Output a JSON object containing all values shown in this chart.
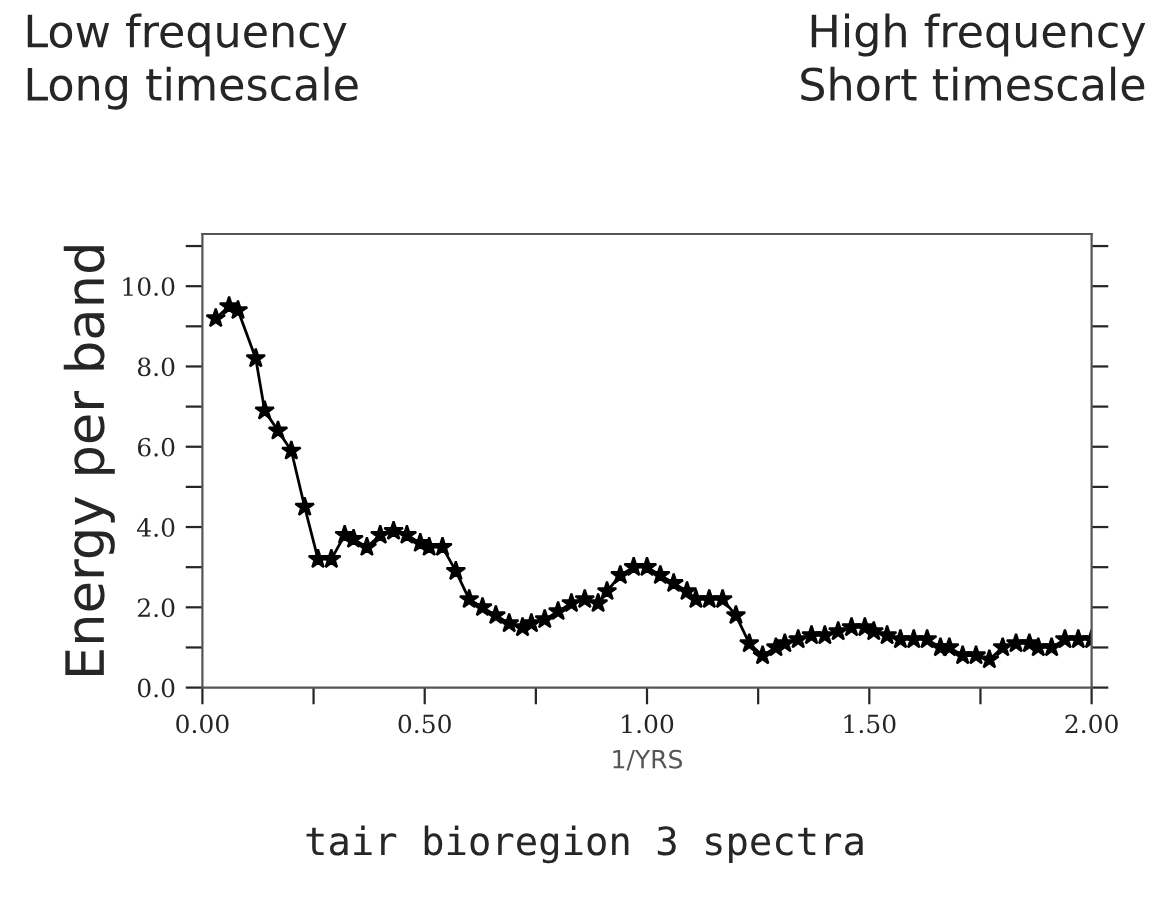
{
  "chart_data": {
    "type": "line",
    "title": "tair bioregion 3 spectra",
    "xlabel": "1/YRS",
    "ylabel": "Energy per band",
    "annotations": [
      "Low frequency\nLong timescale",
      "High frequency\nShort timescale"
    ],
    "x": [
      0.03,
      0.06,
      0.08,
      0.12,
      0.14,
      0.17,
      0.2,
      0.23,
      0.26,
      0.29,
      0.32,
      0.34,
      0.37,
      0.4,
      0.43,
      0.46,
      0.49,
      0.51,
      0.54,
      0.57,
      0.6,
      0.63,
      0.66,
      0.69,
      0.72,
      0.74,
      0.77,
      0.8,
      0.83,
      0.86,
      0.89,
      0.91,
      0.94,
      0.97,
      1.0,
      1.03,
      1.06,
      1.09,
      1.11,
      1.14,
      1.17,
      1.2,
      1.23,
      1.26,
      1.29,
      1.31,
      1.34,
      1.37,
      1.4,
      1.43,
      1.46,
      1.49,
      1.51,
      1.54,
      1.57,
      1.6,
      1.63,
      1.66,
      1.68,
      1.71,
      1.74,
      1.77,
      1.8,
      1.83,
      1.86,
      1.88,
      1.91,
      1.94,
      1.97,
      2.0
    ],
    "series": [
      {
        "color": "#000000",
        "values": [
          9.2,
          9.5,
          9.4,
          8.2,
          6.9,
          6.4,
          5.9,
          4.5,
          3.2,
          3.2,
          3.8,
          3.7,
          3.5,
          3.8,
          3.9,
          3.8,
          3.6,
          3.5,
          3.5,
          2.9,
          2.2,
          2.0,
          1.8,
          1.6,
          1.5,
          1.6,
          1.7,
          1.9,
          2.1,
          2.2,
          2.1,
          2.4,
          2.8,
          3.0,
          3.0,
          2.8,
          2.6,
          2.4,
          2.2,
          2.2,
          2.2,
          1.8,
          1.1,
          0.8,
          1.0,
          1.1,
          1.2,
          1.3,
          1.3,
          1.4,
          1.5,
          1.5,
          1.4,
          1.3,
          1.2,
          1.2,
          1.2,
          1.0,
          1.0,
          0.8,
          0.8,
          0.7,
          1.0,
          1.1,
          1.1,
          1.0,
          1.0,
          1.2,
          1.2,
          1.2
        ]
      }
    ],
    "marker": "star",
    "line_style": "solid",
    "grid": false,
    "legend": false,
    "xlim": [
      0,
      2.0
    ],
    "ylim": [
      0,
      11.3
    ],
    "xticks": [
      {
        "value": 0,
        "label": "0.00"
      },
      {
        "value": 0.25,
        "label": null
      },
      {
        "value": 0.5,
        "label": "0.50"
      },
      {
        "value": 0.75,
        "label": null
      },
      {
        "value": 1.0,
        "label": "1.00"
      },
      {
        "value": 1.25,
        "label": null
      },
      {
        "value": 1.5,
        "label": "1.50"
      },
      {
        "value": 1.75,
        "label": null
      },
      {
        "value": 2.0,
        "label": "2.00"
      }
    ],
    "yticks": [
      {
        "value": 0,
        "label": "0.0"
      },
      {
        "value": 1,
        "label": null
      },
      {
        "value": 2,
        "label": "2.0"
      },
      {
        "value": 3,
        "label": null
      },
      {
        "value": 4,
        "label": "4.0"
      },
      {
        "value": 5,
        "label": null
      },
      {
        "value": 6,
        "label": "6.0"
      },
      {
        "value": 7,
        "label": null
      },
      {
        "value": 8,
        "label": "8.0"
      },
      {
        "value": 9,
        "label": null
      },
      {
        "value": 10,
        "label": "10.0"
      },
      {
        "value": 11,
        "label": null
      }
    ]
  }
}
